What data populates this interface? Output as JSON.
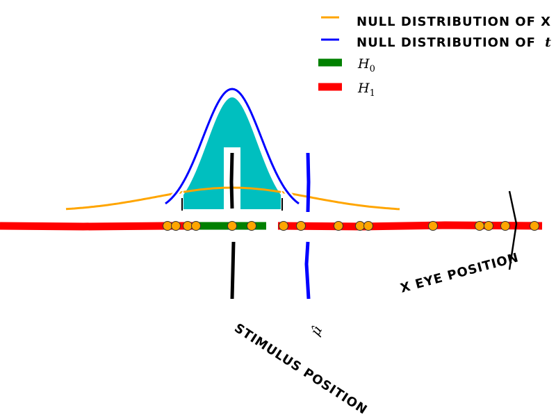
{
  "legend": {
    "items": [
      {
        "label": "null distribution of x",
        "color": "#ffa500"
      },
      {
        "label": "null distribution of ",
        "math": "t",
        "color": "#0000ff"
      },
      {
        "label": "",
        "math": "H",
        "sub": "0",
        "color": "#008000"
      },
      {
        "label": "",
        "math": "H",
        "sub": "1",
        "color": "#ff0000"
      }
    ]
  },
  "annotations": {
    "eye_position": "x eye position",
    "stimulus_position": "stimulus position",
    "mu_hat": "μ̂"
  },
  "colors": {
    "fill": "#00bfbf",
    "samples": "#ffa500"
  }
}
